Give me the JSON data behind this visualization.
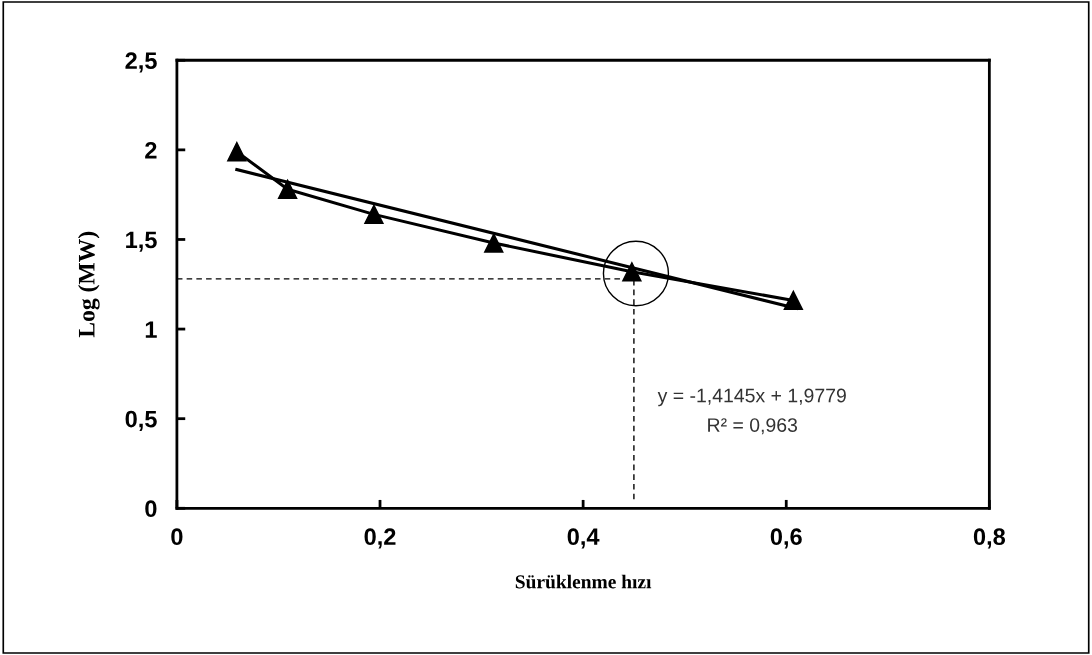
{
  "chart_data": {
    "type": "line",
    "xlabel": "Sürüklenme hızı",
    "ylabel": "Log (MW)",
    "xlim": [
      0,
      0.8
    ],
    "xticks": [
      {
        "value": 0,
        "label": "0"
      },
      {
        "value": 0.2,
        "label": "0,2"
      },
      {
        "value": 0.4,
        "label": "0,4"
      },
      {
        "value": 0.6,
        "label": "0,6"
      },
      {
        "value": 0.8,
        "label": "0,8"
      }
    ],
    "ylim": [
      0,
      2.5
    ],
    "yticks": [
      {
        "value": 0,
        "label": "0"
      },
      {
        "value": 0.5,
        "label": "0,5"
      },
      {
        "value": 1,
        "label": "1"
      },
      {
        "value": 1.5,
        "label": "1,5"
      },
      {
        "value": 2,
        "label": "2"
      },
      {
        "value": 2.5,
        "label": "2,5"
      }
    ],
    "grid": false,
    "legend": false,
    "series": [
      {
        "color": "#000000",
        "marker": "triangle",
        "line_style": "solid",
        "x": [
          0.059,
          0.109,
          0.194,
          0.312,
          0.448,
          0.607
        ],
        "values": [
          1.99,
          1.78,
          1.64,
          1.48,
          1.32,
          1.16
        ]
      },
      {
        "color": "#000000",
        "marker": "none",
        "line_style": "solid",
        "x": [
          0.059,
          0.61
        ],
        "values": [
          1.89,
          1.115
        ]
      },
      {
        "color": "#000000",
        "marker": "none",
        "line_style": "dashed",
        "x": [
          0,
          0.448
        ],
        "values": [
          1.28,
          1.28
        ]
      },
      {
        "color": "#000000",
        "marker": "none",
        "line_style": "dashed",
        "x": [
          0.45,
          0.45
        ],
        "values": [
          0.05,
          1.28
        ]
      }
    ],
    "annotations": [
      "y = -1,4145x + 1,9779",
      "R² = 0,963"
    ]
  }
}
